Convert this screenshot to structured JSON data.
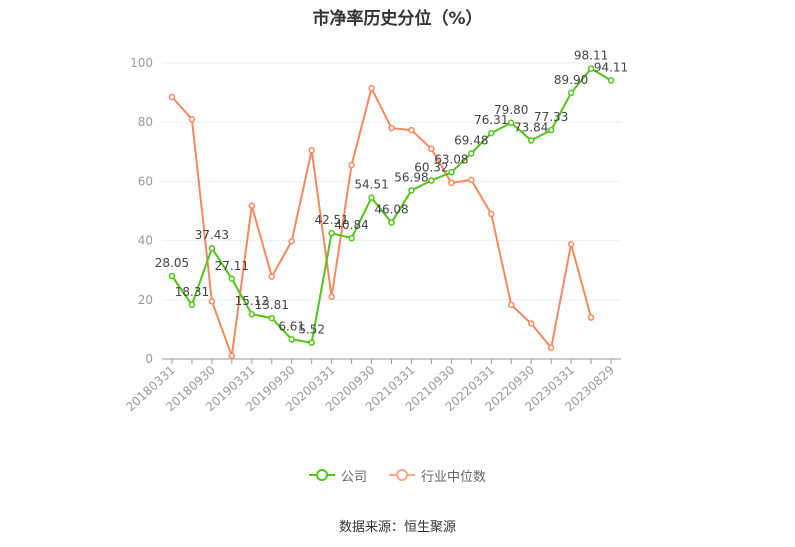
{
  "chart_data": {
    "type": "line",
    "title": "市净率历史分位（%）",
    "ylim": [
      0,
      100
    ],
    "yticks": [
      0,
      20,
      40,
      60,
      80,
      100
    ],
    "grid": true,
    "legend_position": "bottom-center",
    "x": [
      "20180331",
      "20180630",
      "20180930",
      "20181231",
      "20190331",
      "20190630",
      "20190930",
      "20191231",
      "20200331",
      "20200630",
      "20200930",
      "20201231",
      "20210331",
      "20210630",
      "20210930",
      "20211231",
      "20220331",
      "20220630",
      "20220930",
      "20221231",
      "20230331",
      "20230630",
      "20230829"
    ],
    "xtick_labels": [
      "20180331",
      "20180930",
      "20190331",
      "20190930",
      "20200331",
      "20200930",
      "20210331",
      "20210930",
      "20220331",
      "20220930",
      "20230331",
      "20230829"
    ],
    "series": [
      {
        "name": "公司",
        "color": "#52c41a",
        "show_labels": true,
        "values": [
          28.05,
          18.31,
          37.43,
          27.11,
          15.12,
          13.81,
          6.61,
          5.52,
          42.51,
          40.84,
          54.51,
          46.08,
          56.98,
          60.32,
          63.08,
          69.48,
          76.31,
          79.8,
          73.84,
          77.33,
          89.9,
          98.11,
          94.11
        ]
      },
      {
        "name": "行业中位数",
        "color": "#f4895f",
        "show_labels": false,
        "values": [
          88.5,
          81.0,
          19.5,
          1.0,
          51.8,
          27.8,
          39.8,
          70.5,
          21.0,
          65.5,
          91.5,
          78.0,
          77.3,
          71.0,
          59.5,
          60.5,
          49.0,
          18.3,
          12.0,
          3.8,
          38.8,
          14.0,
          null
        ]
      }
    ]
  },
  "legend": {
    "items": [
      {
        "label": "公司",
        "color": "#52c41a"
      },
      {
        "label": "行业中位数",
        "color": "#f4895f"
      }
    ]
  },
  "source": "数据来源：恒生聚源"
}
